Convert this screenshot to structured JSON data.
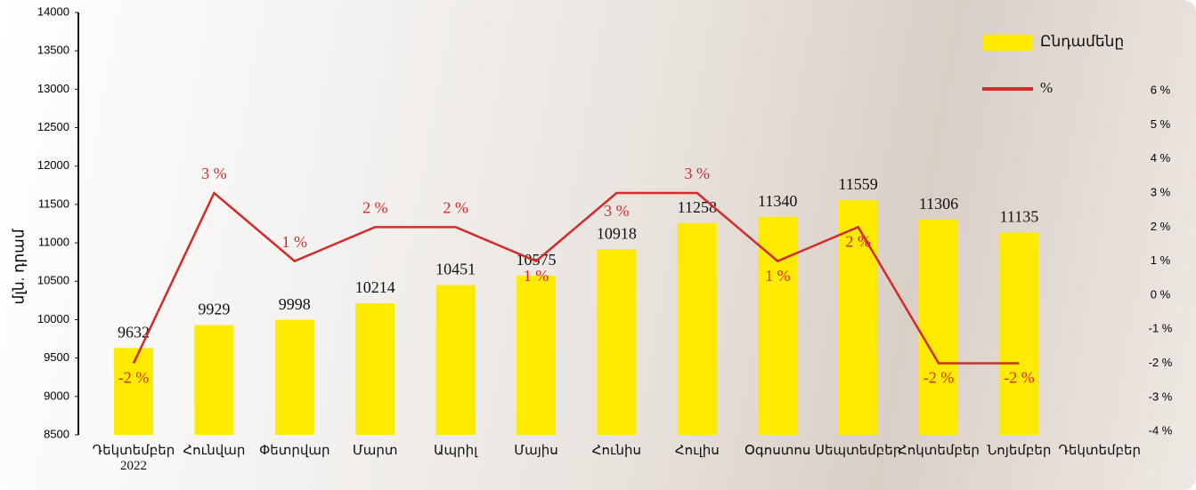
{
  "chart_data": {
    "type": "bar_line",
    "y_label": "մլն. դրամ",
    "categories": [
      "Դեկտեմբեր\n2022",
      "Հունվար",
      "Փետրվար",
      "Մարտ",
      "Ապրիլ",
      "Մայիս",
      "Հունիս",
      "Հուլիս",
      "Օգոստոս",
      "Սեպտեմբեր",
      "Հոկտեմբեր",
      "Նոյեմբեր",
      "Դեկտեմբեր"
    ],
    "series": [
      {
        "name": "Ընդամենը",
        "type": "bar",
        "color": "#ffea00",
        "values": [
          9632,
          9929,
          9998,
          10214,
          10451,
          10575,
          10918,
          11258,
          11340,
          11559,
          11306,
          11135,
          null
        ]
      },
      {
        "name": "%",
        "type": "line",
        "axis": "y2",
        "color": "#d12b2b",
        "values": [
          -2,
          3,
          1,
          2,
          2,
          1,
          3,
          3,
          1,
          2,
          -2,
          -2,
          null
        ],
        "value_labels": [
          "-2 %",
          "3 %",
          "1 %",
          "2 %",
          "2 %",
          "1 %",
          "3 %",
          "3 %",
          "1 %",
          "2 %",
          "-2 %",
          "-2 %",
          null
        ]
      }
    ],
    "ylim": [
      8500,
      14000
    ],
    "yticks": [
      8500,
      9000,
      9500,
      10000,
      10500,
      11000,
      11500,
      12000,
      12500,
      13000,
      13500,
      14000
    ],
    "y2lim": [
      -4.1,
      8.3
    ],
    "y2ticks": [
      {
        "value": -4,
        "label": "-4 %"
      },
      {
        "value": -3,
        "label": "-3 %"
      },
      {
        "value": -2,
        "label": "-2 %"
      },
      {
        "value": -1,
        "label": "-1 %"
      },
      {
        "value": 0,
        "label": "0 %"
      },
      {
        "value": 1,
        "label": "1 %"
      },
      {
        "value": 2,
        "label": "2 %"
      },
      {
        "value": 3,
        "label": "3 %"
      },
      {
        "value": 4,
        "label": "4 %"
      },
      {
        "value": 5,
        "label": "5 %"
      },
      {
        "value": 6,
        "label": "6 %"
      }
    ],
    "legend": "top-right"
  }
}
